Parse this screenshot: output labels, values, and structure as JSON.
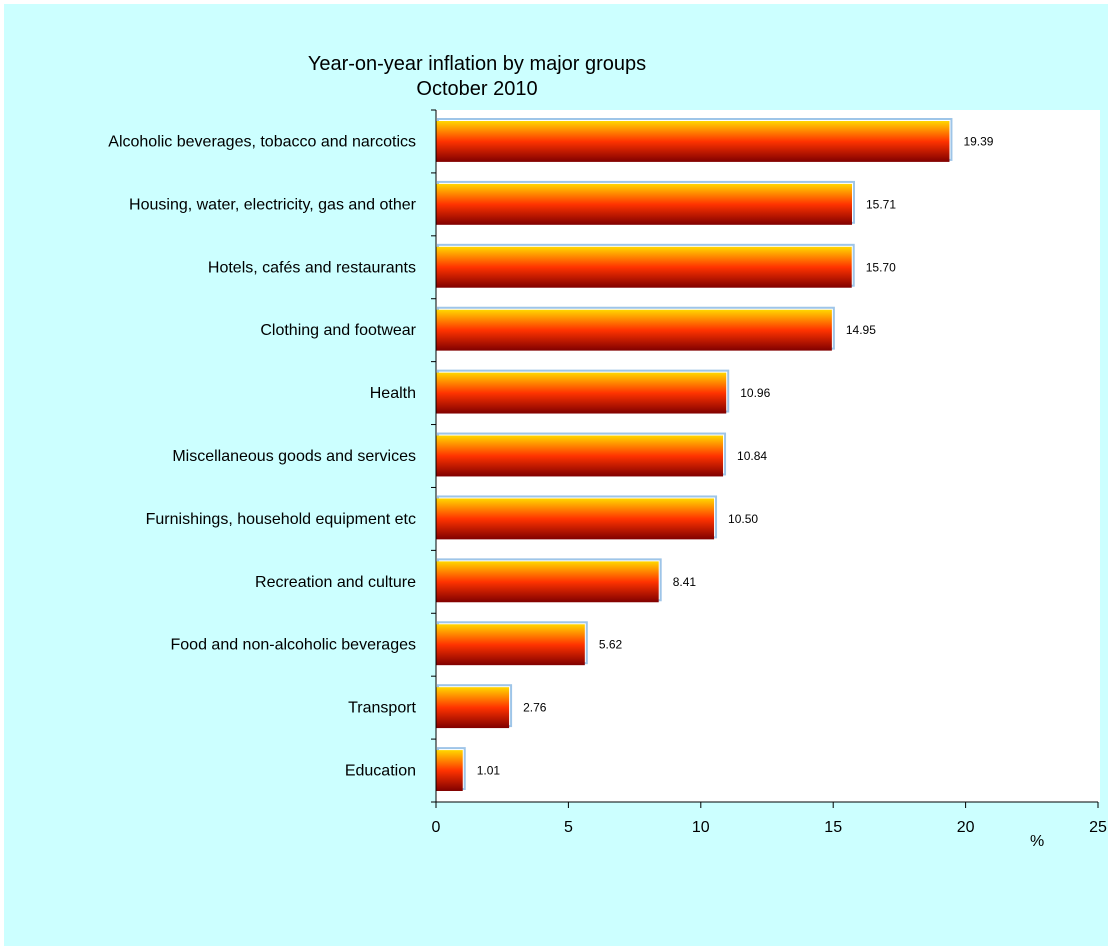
{
  "chart_data": {
    "type": "bar",
    "orientation": "horizontal",
    "title": "Year-on-year inflation by major groups",
    "subtitle": "October 2010",
    "unit_label": "%",
    "categories": [
      "Alcoholic beverages, tobacco and narcotics",
      "Housing, water, electricity, gas and other",
      "Hotels, cafés and restaurants",
      "Clothing and footwear",
      "Health",
      "Miscellaneous goods and services",
      "Furnishings, household equipment etc",
      "Recreation and culture",
      "Food and non-alcoholic beverages",
      "Transport",
      "Education"
    ],
    "values": [
      19.39,
      15.71,
      15.7,
      14.95,
      10.96,
      10.84,
      10.5,
      8.41,
      5.62,
      2.76,
      1.01
    ],
    "value_labels": [
      "19.39",
      "15.71",
      "15.70",
      "14.95",
      "10.96",
      "10.84",
      "10.50",
      "8.41",
      "5.62",
      "2.76",
      "1.01"
    ],
    "xlim": [
      0,
      25
    ],
    "xticks": [
      "0",
      "5",
      "10",
      "15",
      "20",
      "25"
    ],
    "grid": false,
    "colors": {
      "background": "#ccffff",
      "plot_area": "#ffffff",
      "bar_top": "#ffd700",
      "bar_mid": "#ff3300",
      "bar_bottom": "#800000",
      "bar_edge": "#9ec5e8",
      "axis": "#000000"
    }
  }
}
